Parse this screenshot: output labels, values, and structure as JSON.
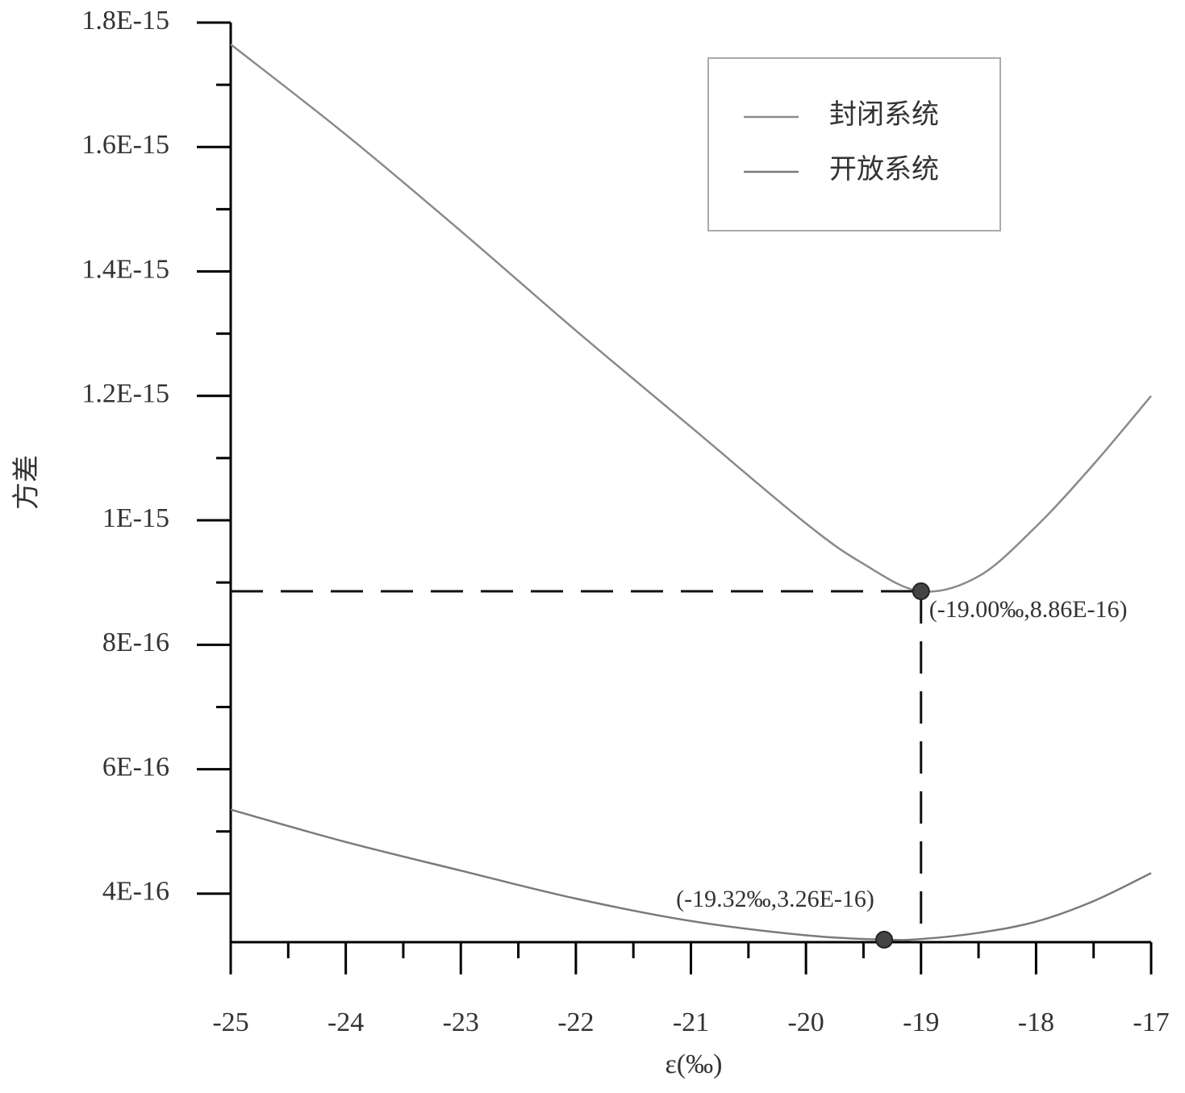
{
  "chart_data": {
    "type": "line",
    "xlabel": "ε(‰)",
    "ylabel": "方差",
    "xlim": [
      -25,
      -17
    ],
    "xticks": [
      -25,
      -24,
      -23,
      -22,
      -21,
      -20,
      -19,
      -18,
      -17
    ],
    "xminorticks": [
      -24.5,
      -23.5,
      -22.5,
      -21.5,
      -20.5,
      -19.5,
      -18.5,
      -17.5
    ],
    "ylim": [
      3.22e-16,
      1.8e-15
    ],
    "yticks": [
      {
        "value": 4e-16,
        "label": "4E-16"
      },
      {
        "value": 6e-16,
        "label": "6E-16"
      },
      {
        "value": 8e-16,
        "label": "8E-16"
      },
      {
        "value": 1e-15,
        "label": "1E-15"
      },
      {
        "value": 1.2e-15,
        "label": "1.2E-15"
      },
      {
        "value": 1.4e-15,
        "label": "1.4E-15"
      },
      {
        "value": 1.6e-15,
        "label": "1.6E-15"
      },
      {
        "value": 1.8e-15,
        "label": "1.8E-15"
      }
    ],
    "yminorticks": [
      5e-16,
      7e-16,
      9e-16,
      1.1e-15,
      1.3e-15,
      1.5e-15,
      1.7e-15
    ],
    "legend": "top-right",
    "series": [
      {
        "name": "封闭系统",
        "color": "#8a8a8a",
        "x": [
          -25,
          -24,
          -23,
          -22,
          -21,
          -20,
          -19.5,
          -19,
          -18.5,
          -18,
          -17.5,
          -17
        ],
        "values": [
          1.765e-15,
          1.62e-15,
          1.465e-15,
          1.305e-15,
          1.15e-15,
          9.95e-16,
          9.3e-16,
          8.86e-16,
          9.1e-16,
          9.9e-16,
          1.09e-15,
          1.2e-15
        ]
      },
      {
        "name": "开放系统",
        "color": "#7a7a7a",
        "x": [
          -25,
          -24,
          -23,
          -22,
          -21,
          -20,
          -19.32,
          -19,
          -18.5,
          -18,
          -17.5,
          -17
        ],
        "values": [
          5.35e-16,
          4.83e-16,
          4.37e-16,
          3.92e-16,
          3.56e-16,
          3.33e-16,
          3.26e-16,
          3.27e-16,
          3.37e-16,
          3.55e-16,
          3.88e-16,
          4.33e-16
        ]
      }
    ],
    "annotations": [
      {
        "x": -19,
        "y": 8.86e-16,
        "label": "(-19.00‰,8.86E-16)"
      },
      {
        "x": -19.32,
        "y": 3.26e-16,
        "label": "(-19.32‰,3.26E-16)"
      }
    ]
  }
}
